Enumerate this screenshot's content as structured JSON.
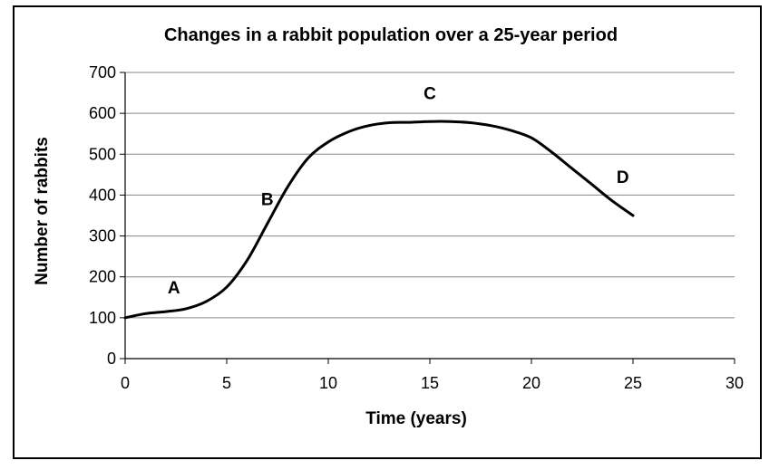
{
  "chart_data": {
    "type": "line",
    "title": "Changes in a rabbit population over a 25-year period",
    "xlabel": "Time (years)",
    "ylabel": "Number of rabbits",
    "xlim": [
      0,
      30
    ],
    "ylim": [
      0,
      700
    ],
    "xticks": [
      0,
      5,
      10,
      15,
      20,
      25,
      30
    ],
    "yticks": [
      0,
      100,
      200,
      300,
      400,
      500,
      600,
      700
    ],
    "grid": "horizontal",
    "series": [
      {
        "x": [
          0,
          1,
          2,
          3,
          4,
          5,
          6,
          7,
          8,
          9,
          10,
          11,
          12,
          13,
          14,
          15,
          16,
          17,
          18,
          19,
          20,
          21,
          22,
          23,
          24,
          25
        ],
        "y": [
          100,
          110,
          115,
          122,
          140,
          175,
          240,
          330,
          420,
          490,
          530,
          555,
          570,
          577,
          578,
          580,
          580,
          577,
          570,
          558,
          540,
          505,
          465,
          425,
          385,
          350
        ],
        "color": "#000000"
      }
    ],
    "annotations": [
      {
        "text": "A",
        "x": 2.4,
        "y": 160
      },
      {
        "text": "B",
        "x": 7.0,
        "y": 375
      },
      {
        "text": "C",
        "x": 15.0,
        "y": 635
      },
      {
        "text": "D",
        "x": 24.5,
        "y": 430
      }
    ]
  }
}
